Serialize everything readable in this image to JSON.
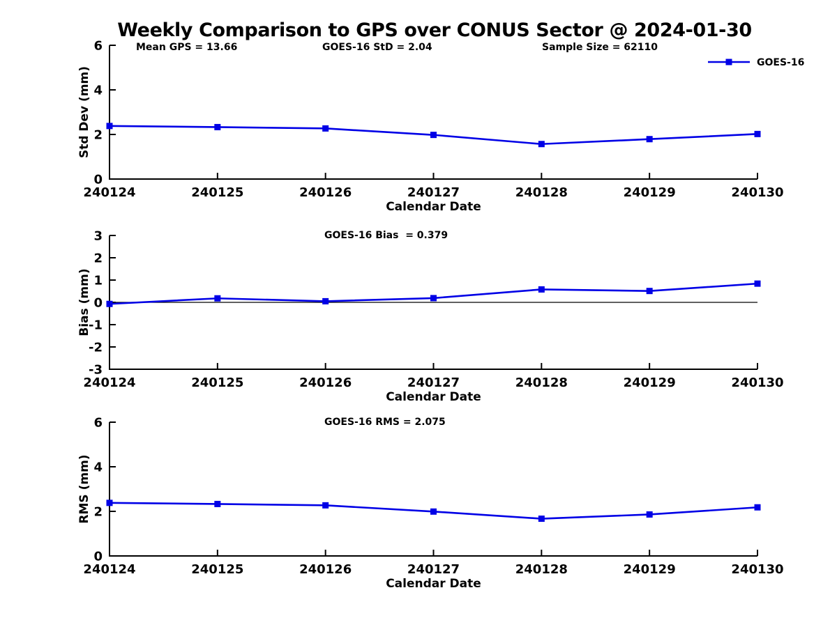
{
  "title": "Weekly Comparison to GPS over CONUS Sector @ 2024-01-30",
  "legend": {
    "label": "GOES-16"
  },
  "colors": {
    "series": "#0000E6",
    "axis": "#000000",
    "background": "#FFFFFF"
  },
  "chart_data": [
    {
      "type": "line",
      "panel": "std-dev",
      "ylabel": "Std Dev (mm)",
      "xlabel": "Calendar Date",
      "ylim": [
        0,
        6
      ],
      "yticks": [
        0,
        2,
        4,
        6
      ],
      "grid": false,
      "legend_position": "top-right-outside",
      "categories": [
        "240124",
        "240125",
        "240126",
        "240127",
        "240128",
        "240129",
        "240130"
      ],
      "series": [
        {
          "name": "GOES-16",
          "values": [
            2.38,
            2.33,
            2.27,
            1.98,
            1.57,
            1.79,
            2.02
          ]
        }
      ],
      "annotations": [
        "Mean GPS = 13.66",
        "GOES-16 StD = 2.04",
        "Sample Size = 62110"
      ]
    },
    {
      "type": "line",
      "panel": "bias",
      "ylabel": "Bias (mm)",
      "xlabel": "Calendar Date",
      "ylim": [
        -3,
        3
      ],
      "yticks": [
        3,
        2,
        1,
        0,
        -1,
        -2,
        -3
      ],
      "zero_line": true,
      "grid": false,
      "categories": [
        "240124",
        "240125",
        "240126",
        "240127",
        "240128",
        "240129",
        "240130"
      ],
      "series": [
        {
          "name": "GOES-16",
          "values": [
            -0.07,
            0.18,
            0.05,
            0.19,
            0.58,
            0.51,
            0.84
          ]
        }
      ],
      "annotations": [
        "GOES-16 Bias  = 0.379"
      ]
    },
    {
      "type": "line",
      "panel": "rms",
      "ylabel": "RMS (mm)",
      "xlabel": "Calendar Date",
      "ylim": [
        0,
        6
      ],
      "yticks": [
        0,
        2,
        4,
        6
      ],
      "grid": false,
      "categories": [
        "240124",
        "240125",
        "240126",
        "240127",
        "240128",
        "240129",
        "240130"
      ],
      "series": [
        {
          "name": "GOES-16",
          "values": [
            2.38,
            2.33,
            2.27,
            1.99,
            1.67,
            1.86,
            2.18
          ]
        }
      ],
      "annotations": [
        "GOES-16 RMS = 2.075"
      ]
    }
  ]
}
